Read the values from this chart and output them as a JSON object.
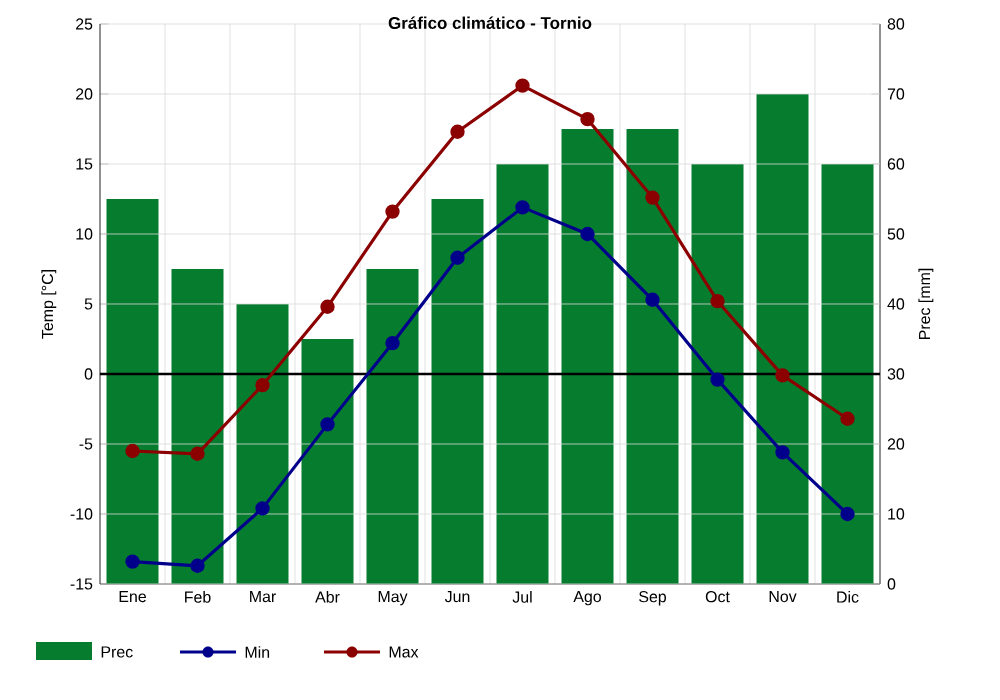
{
  "chart_data": {
    "type": "bar",
    "title": "Gráfico climático - Tornio",
    "ylabel": "Temp [°C]",
    "y2label": "Prec [mm]",
    "categories": [
      "Ene",
      "Feb",
      "Mar",
      "Abr",
      "May",
      "Jun",
      "Jul",
      "Ago",
      "Sep",
      "Oct",
      "Nov",
      "Dic"
    ],
    "series": [
      {
        "name": "Prec",
        "axis": "y2",
        "color": "#067c2f",
        "values": [
          55,
          45,
          40,
          35,
          45,
          55,
          60,
          65,
          65,
          60,
          70,
          60
        ]
      },
      {
        "name": "Min",
        "type": "line",
        "color": "#00008b",
        "values": [
          -13.4,
          -13.7,
          -9.6,
          -3.6,
          2.2,
          8.3,
          11.9,
          10.0,
          5.3,
          -0.4,
          -5.6,
          -10.0
        ]
      },
      {
        "name": "Max",
        "type": "line",
        "color": "#8b0000",
        "values": [
          -5.5,
          -5.7,
          -0.8,
          4.8,
          11.6,
          17.3,
          20.6,
          18.2,
          12.6,
          5.2,
          -0.1,
          -3.2
        ]
      }
    ],
    "ylim": [
      -15,
      25
    ],
    "yticks": [
      -15,
      -10,
      -5,
      0,
      5,
      10,
      15,
      20,
      25
    ],
    "y2lim": [
      0,
      80
    ],
    "y2ticks": [
      0,
      10,
      20,
      30,
      40,
      50,
      60,
      70,
      80
    ],
    "ref_lines": [
      {
        "axis": "y",
        "value": 0,
        "color": "#000000"
      }
    ],
    "grid": true,
    "legend": "bottom",
    "marker": "circle"
  }
}
